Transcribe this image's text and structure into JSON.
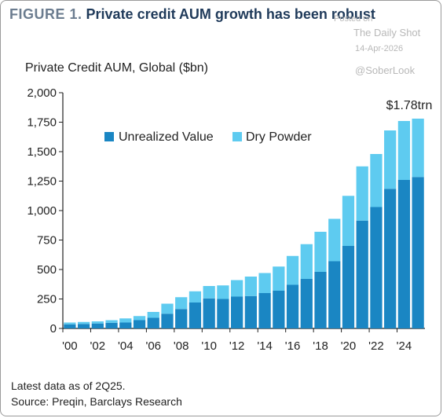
{
  "header": {
    "figure_label": "FIGURE 1.",
    "title": "Private credit AUM growth has been robust"
  },
  "watermark": {
    "posted_on": "Posted on",
    "source": "The Daily Shot",
    "date": "14-Apr-2026",
    "handle": "@SoberLook"
  },
  "footer": {
    "note": "Latest data as of 2Q25.",
    "source": "Source: Preqin, Barclays Research"
  },
  "colors": {
    "unrealized": "#1a86c3",
    "dry_powder": "#5ecbf0",
    "axis": "#222222"
  },
  "chart_data": {
    "type": "bar",
    "stacked": true,
    "title": "Private Credit AUM, Global ($bn)",
    "xlabel": "",
    "ylabel": "",
    "ylim": [
      0,
      2000
    ],
    "yticks": [
      "0",
      "250",
      "500",
      "750",
      "1,000",
      "1,250",
      "1,500",
      "1,750",
      "2,000"
    ],
    "ytick_values": [
      0,
      250,
      500,
      750,
      1000,
      1250,
      1500,
      1750,
      2000
    ],
    "categories": [
      "2000",
      "2001",
      "2002",
      "2003",
      "2004",
      "2005",
      "2006",
      "2007",
      "2008",
      "2009",
      "2010",
      "2011",
      "2012",
      "2013",
      "2014",
      "2015",
      "2016",
      "2017",
      "2018",
      "2019",
      "2020",
      "2021",
      "2022",
      "2023",
      "2024",
      "2025"
    ],
    "xtick_labels": [
      "'00",
      "'02",
      "'04",
      "'06",
      "'08",
      "'10",
      "'12",
      "'14",
      "'16",
      "'18",
      "'20",
      "'22",
      "'24"
    ],
    "xtick_indices": [
      0,
      2,
      4,
      6,
      8,
      10,
      12,
      14,
      16,
      18,
      20,
      22,
      24
    ],
    "legend_position": "top-left",
    "series": [
      {
        "name": "Unrealized Value",
        "values": [
          35,
          38,
          42,
          48,
          50,
          70,
          90,
          125,
          165,
          220,
          255,
          250,
          270,
          275,
          300,
          320,
          370,
          420,
          480,
          570,
          700,
          915,
          1030,
          1185,
          1260,
          1285
        ]
      },
      {
        "name": "Dry Powder",
        "values": [
          15,
          17,
          18,
          22,
          35,
          35,
          50,
          85,
          100,
          95,
          105,
          115,
          140,
          165,
          170,
          205,
          245,
          295,
          340,
          360,
          425,
          460,
          450,
          495,
          500,
          495
        ]
      }
    ],
    "annotation": "$1.78trn"
  }
}
